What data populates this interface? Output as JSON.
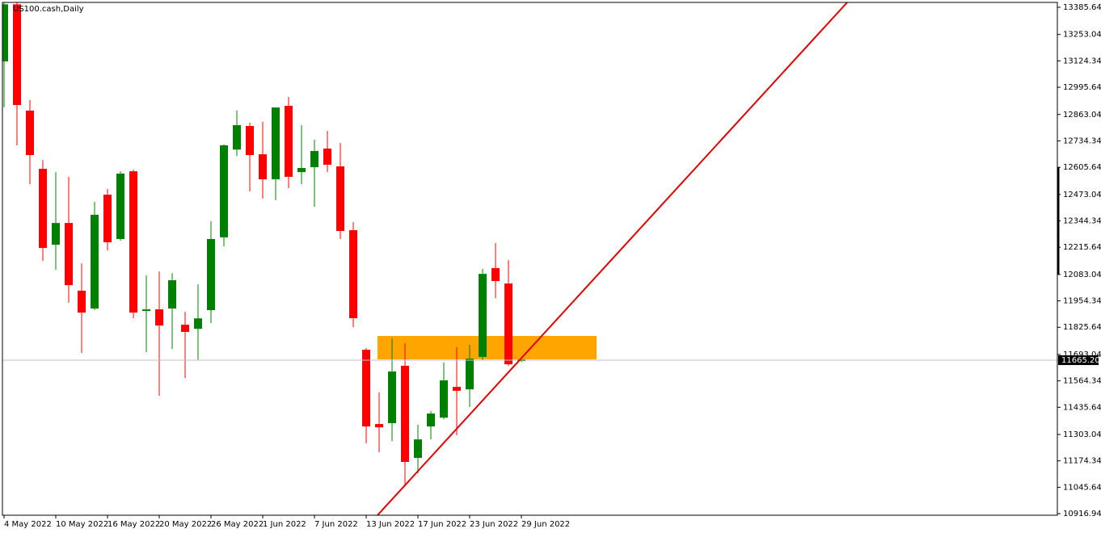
{
  "chart_data": {
    "type": "candlestick",
    "title": "US100.cash,Daily",
    "categories": [
      "4 May 2022",
      null,
      null,
      null,
      "10 May 2022",
      null,
      null,
      null,
      "16 May 2022",
      null,
      null,
      null,
      "20 May 2022",
      null,
      null,
      null,
      "26 May 2022",
      null,
      null,
      null,
      "1 Jun 2022",
      null,
      null,
      null,
      "7 Jun 2022",
      null,
      null,
      null,
      "13 Jun 2022",
      null,
      null,
      null,
      "17 Jun 2022",
      null,
      null,
      null,
      "23 Jun 2022",
      null,
      null,
      null,
      "29 Jun 2022"
    ],
    "open": [
      13122,
      13400,
      12882,
      12598,
      12228,
      12334,
      12004,
      11917,
      12472,
      12256,
      12586,
      11905,
      11913,
      11917,
      11838,
      11818,
      11909,
      12264,
      12692,
      12807,
      12669,
      12547,
      12905,
      12582,
      12606,
      12697,
      12610,
      12299,
      11716,
      11354,
      11358,
      11638,
      11189,
      11342,
      11385,
      11535,
      11523,
      11681,
      12114,
      12039,
      11661
    ],
    "high": [
      13409,
      13409,
      12933,
      12641,
      12582,
      12559,
      12137,
      12437,
      12500,
      12586,
      12594,
      12078,
      12098,
      12090,
      11901,
      12035,
      12343,
      12717,
      12882,
      12823,
      12827,
      12897,
      12949,
      12811,
      12740,
      12783,
      12724,
      12338,
      11724,
      11508,
      11771,
      11748,
      11350,
      11417,
      11654,
      11728,
      11740,
      12110,
      12236,
      12153,
      11677
    ],
    "low": [
      12898,
      12712,
      12523,
      12149,
      12106,
      11945,
      11700,
      11909,
      12200,
      12248,
      11870,
      11704,
      11492,
      11720,
      11578,
      11665,
      11846,
      12220,
      12661,
      12488,
      12453,
      12445,
      12504,
      12523,
      12413,
      12582,
      12256,
      11826,
      11260,
      11216,
      11271,
      11051,
      11114,
      11279,
      11378,
      11299,
      11437,
      11665,
      11968,
      11638,
      11657
    ],
    "close": [
      13400,
      12909,
      12665,
      12212,
      12334,
      12031,
      11897,
      12374,
      12240,
      12575,
      11897,
      11913,
      11834,
      12055,
      11803,
      11869,
      12256,
      12713,
      12811,
      12665,
      12547,
      12897,
      12559,
      12602,
      12685,
      12618,
      12295,
      11870,
      11342,
      11338,
      11610,
      11169,
      11279,
      11405,
      11567,
      11516,
      11673,
      12086,
      12051,
      11645,
      11669
    ],
    "up_color": "#008000",
    "down_color": "#ff0000",
    "ylim": [
      10909.3,
      13409.3
    ],
    "yticks": [
      13385.64,
      13253.04,
      13124.34,
      12995.64,
      12863.04,
      12734.34,
      12605.64,
      12473.04,
      12344.34,
      12215.64,
      12083.04,
      11954.34,
      11825.64,
      11693.04,
      11564.34,
      11435.64,
      11303.04,
      11174.34,
      11045.64,
      10916.94
    ],
    "current_price": {
      "value": 11665.2,
      "label": "11665.20"
    }
  }
}
